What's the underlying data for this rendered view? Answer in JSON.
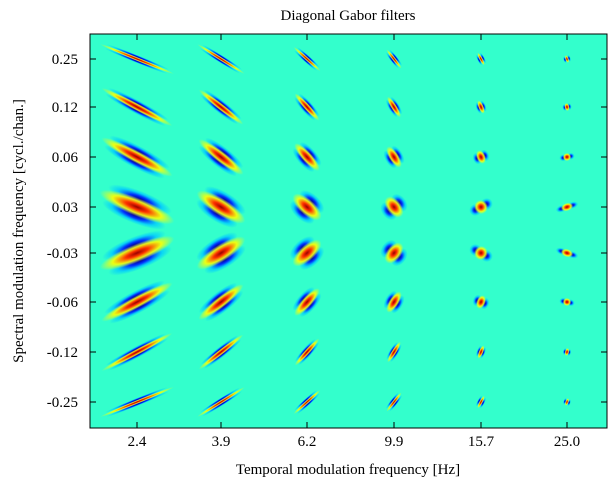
{
  "chart_data": {
    "type": "heatmap",
    "title": "Diagonal Gabor filters",
    "xlabel": "Temporal modulation frequency [Hz]",
    "ylabel": "Spectral modulation frequency [cycl./chan.]",
    "x_tick_labels": [
      "2.4",
      "3.9",
      "6.2",
      "9.9",
      "15.7",
      "25.0"
    ],
    "y_tick_labels": [
      "0.25",
      "0.12",
      "0.06",
      "0.03",
      "-0.03",
      "-0.06",
      "-0.12",
      "-0.25"
    ],
    "temporal_modulation_hz": [
      2.4,
      3.9,
      6.2,
      9.9,
      15.7,
      25.0
    ],
    "spectral_modulation_cycl_per_chan": [
      0.25,
      0.12,
      0.06,
      0.03,
      -0.03,
      -0.06,
      -0.12,
      -0.25
    ],
    "grid": false,
    "colors": {
      "background": "#33ffcc",
      "positive_peak": "#990000",
      "positive_mid": "#ff3300",
      "positive_low": "#ffff00",
      "negative_peak": "#000099",
      "negative_mid": "#0033ff",
      "negative_low": "#00ccff"
    }
  }
}
